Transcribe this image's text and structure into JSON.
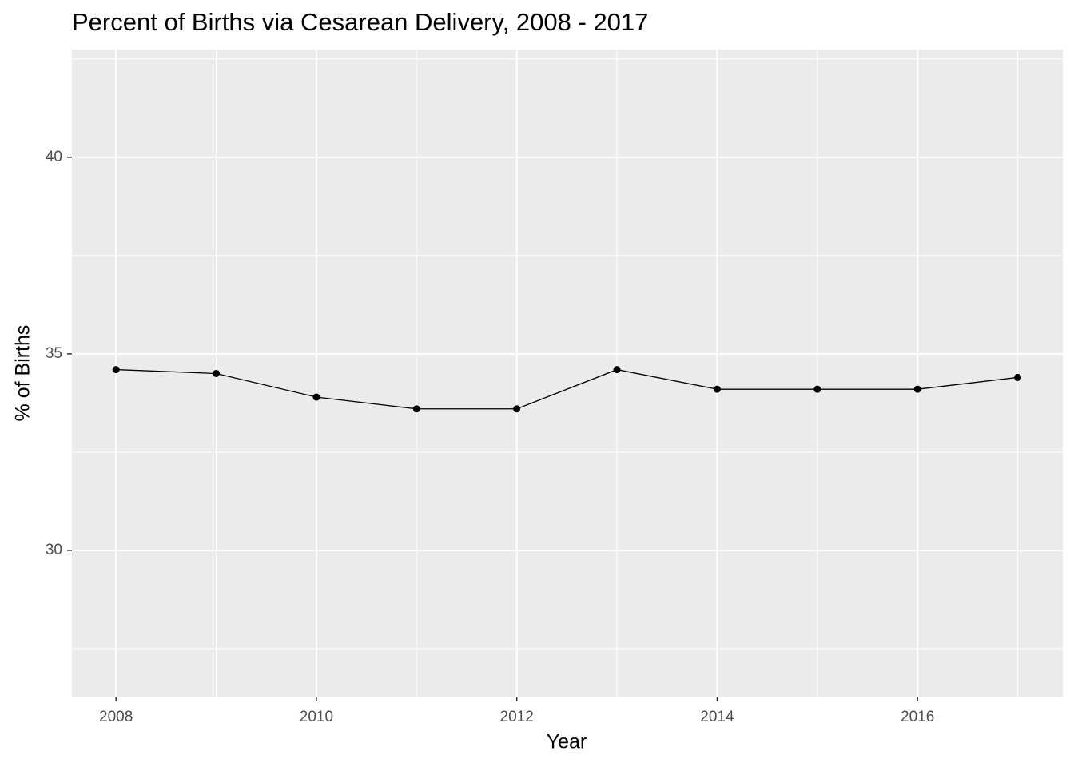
{
  "chart_data": {
    "type": "line",
    "title": "Percent of Births via Cesarean Delivery, 2008 - 2017",
    "x_label": "Year",
    "y_label": "% of Births",
    "x": [
      2008,
      2009,
      2010,
      2011,
      2012,
      2013,
      2014,
      2015,
      2016,
      2017
    ],
    "series": [
      {
        "name": "Cesarean",
        "color": "#000000",
        "values": [
          34.6,
          34.5,
          33.9,
          33.6,
          33.6,
          34.6,
          34.1,
          34.1,
          34.1,
          34.4
        ]
      }
    ],
    "xlim": [
      2007.56,
      2017.45
    ],
    "xticks": [
      2008,
      2010,
      2012,
      2014,
      2016
    ],
    "minor_xticks": [
      2009,
      2011,
      2013,
      2015,
      2017
    ],
    "ylim": [
      26.28,
      42.74
    ],
    "yticks": [
      30,
      35,
      40
    ],
    "minor_yticks": [
      27.5,
      32.5,
      37.5,
      42.5
    ],
    "grid": true
  }
}
